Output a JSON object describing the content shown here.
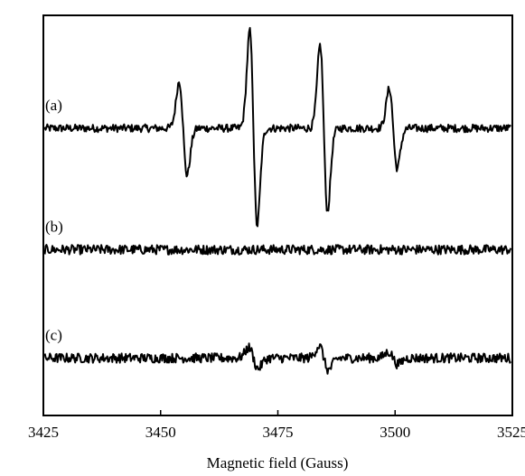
{
  "chart_data": {
    "type": "line",
    "title": "",
    "xlabel": "Magnetic field (Gauss)",
    "ylabel": "",
    "xlim": [
      3425,
      3525
    ],
    "x_ticks": [
      3425,
      3450,
      3475,
      3500,
      3525
    ],
    "x_tick_labels": [
      "3425",
      "3450",
      "3475",
      "3500",
      "3525"
    ],
    "y_ticks_shown": false,
    "grid": false,
    "legend": "none",
    "line_color": "#000000",
    "series": [
      {
        "label": "(a)",
        "baseline": 0,
        "noise": 0.45,
        "lines": [
          {
            "center": 3454.8,
            "width": 0.85,
            "amplitude": 5.4
          },
          {
            "center": 3469.8,
            "width": 0.8,
            "amplitude": 11.2
          },
          {
            "center": 3484.8,
            "width": 0.8,
            "amplitude": 9.6
          },
          {
            "center": 3499.6,
            "width": 0.85,
            "amplitude": 4.6
          }
        ]
      },
      {
        "label": "(b)",
        "baseline": -14.0,
        "noise": 0.55,
        "lines": []
      },
      {
        "label": "(c)",
        "baseline": -26.5,
        "noise": 0.55,
        "lines": [
          {
            "center": 3469.8,
            "width": 1.0,
            "amplitude": 1.2
          },
          {
            "center": 3484.8,
            "width": 1.0,
            "amplitude": 1.4
          },
          {
            "center": 3499.6,
            "width": 1.0,
            "amplitude": 0.7
          }
        ]
      }
    ]
  }
}
